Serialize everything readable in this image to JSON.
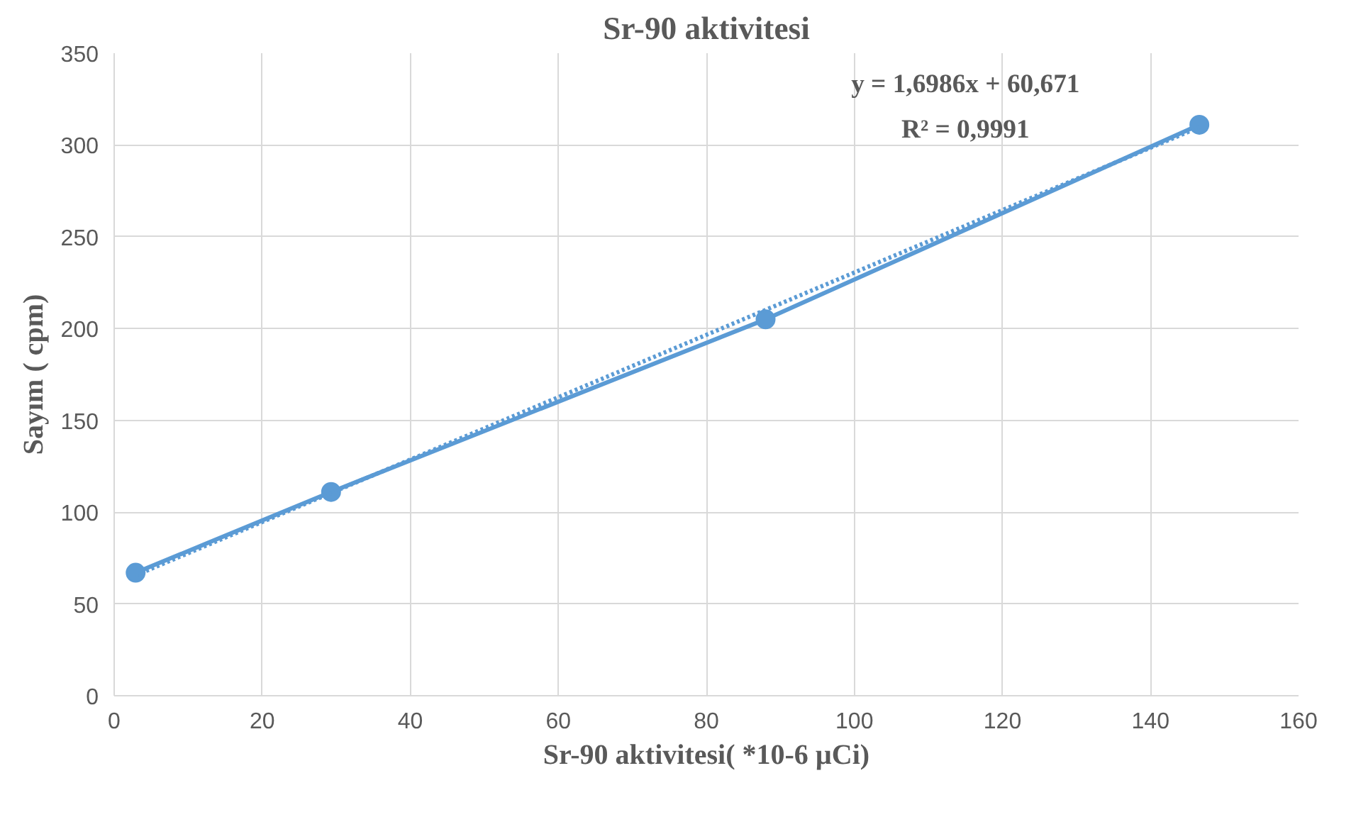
{
  "chart_data": {
    "type": "line",
    "title": "Sr-90 aktivitesi",
    "xlabel": "Sr-90 aktivitesi( *10-6 µCi)",
    "ylabel": "Sayım ( cpm)",
    "xlim": [
      0,
      160
    ],
    "xticks": [
      0,
      20,
      40,
      60,
      80,
      100,
      120,
      140,
      160
    ],
    "ylim": [
      0,
      350
    ],
    "yticks": [
      0,
      50,
      100,
      150,
      200,
      250,
      300,
      350
    ],
    "grid": true,
    "series": [
      {
        "color": "#5b9bd5",
        "marker": "circle",
        "line_style": "solid",
        "x": [
          2.9,
          29.3,
          88,
          146.6
        ],
        "values": [
          67,
          111,
          205,
          311
        ]
      },
      {
        "color": "#5b9bd5",
        "marker": "none",
        "line_style": "dotted",
        "x": [
          2.9,
          146.6
        ],
        "values": [
          65.6,
          309.7
        ]
      }
    ],
    "annotations": [
      "y = 1,6986x + 60,671",
      "R² = 0,9991"
    ]
  }
}
